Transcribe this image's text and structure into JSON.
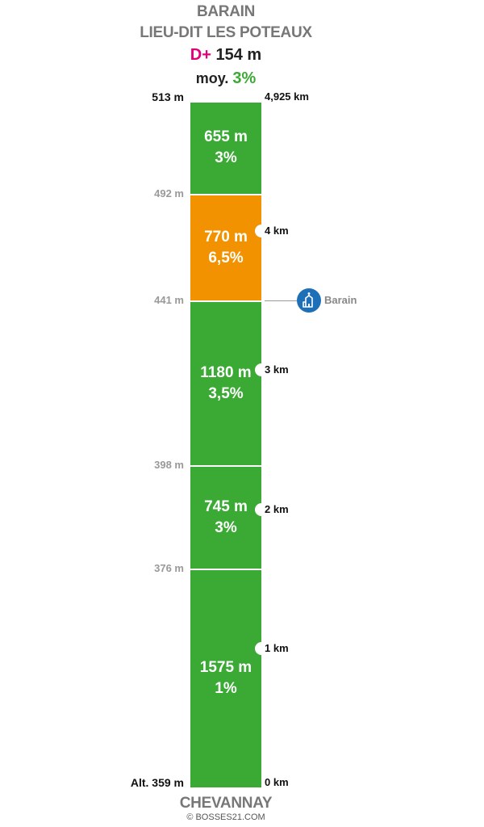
{
  "header": {
    "summit": "BARAIN",
    "pass_name": "LIEU-DIT LES POTEAUX",
    "dplus_label": "D+",
    "dplus_value": "154 m",
    "avg_label": "moy.",
    "avg_value": "3%"
  },
  "top": {
    "altitude_label": "513 m",
    "distance_label": "4,925 km"
  },
  "bottom": {
    "altitude_label": "Alt. 359 m",
    "distance_label": "0 km",
    "start_name": "CHEVANNAY"
  },
  "copyright": "© BOSSES21.COM",
  "colors": {
    "green": "#3aaa35",
    "orange": "#f39200",
    "pink": "#e2007a",
    "gray": "#777777",
    "poi_blue": "#1d70b7"
  },
  "chart_data": {
    "type": "bar",
    "orientation": "vertical-stack",
    "total_distance_km": 4.925,
    "start_altitude_m": 359,
    "end_altitude_m": 513,
    "segments": [
      {
        "length_label": "1575 m",
        "grade_label": "1%",
        "length_m": 1575,
        "grade_pct": 1,
        "alt_top_m": 376,
        "alt_top_label": "376 m",
        "color": "#3aaa35"
      },
      {
        "length_label": "745 m",
        "grade_label": "3%",
        "length_m": 745,
        "grade_pct": 3,
        "alt_top_m": 398,
        "alt_top_label": "398 m",
        "color": "#3aaa35"
      },
      {
        "length_label": "1180 m",
        "grade_label": "3,5%",
        "length_m": 1180,
        "grade_pct": 3.5,
        "alt_top_m": 441,
        "alt_top_label": "441 m",
        "color": "#3aaa35"
      },
      {
        "length_label": "770 m",
        "grade_label": "6,5%",
        "length_m": 770,
        "grade_pct": 6.5,
        "alt_top_m": 492,
        "alt_top_label": "492 m",
        "color": "#f39200"
      },
      {
        "length_label": "655 m",
        "grade_label": "3%",
        "length_m": 655,
        "grade_pct": 3,
        "alt_top_m": 513,
        "alt_top_label": "",
        "color": "#3aaa35"
      }
    ],
    "km_markers": [
      {
        "km": 1,
        "label": "1 km"
      },
      {
        "km": 2,
        "label": "2 km"
      },
      {
        "km": 3,
        "label": "3 km"
      },
      {
        "km": 4,
        "label": "4 km"
      }
    ],
    "poi": {
      "name": "Barain",
      "km": 3.5,
      "icon": "church-icon"
    }
  }
}
